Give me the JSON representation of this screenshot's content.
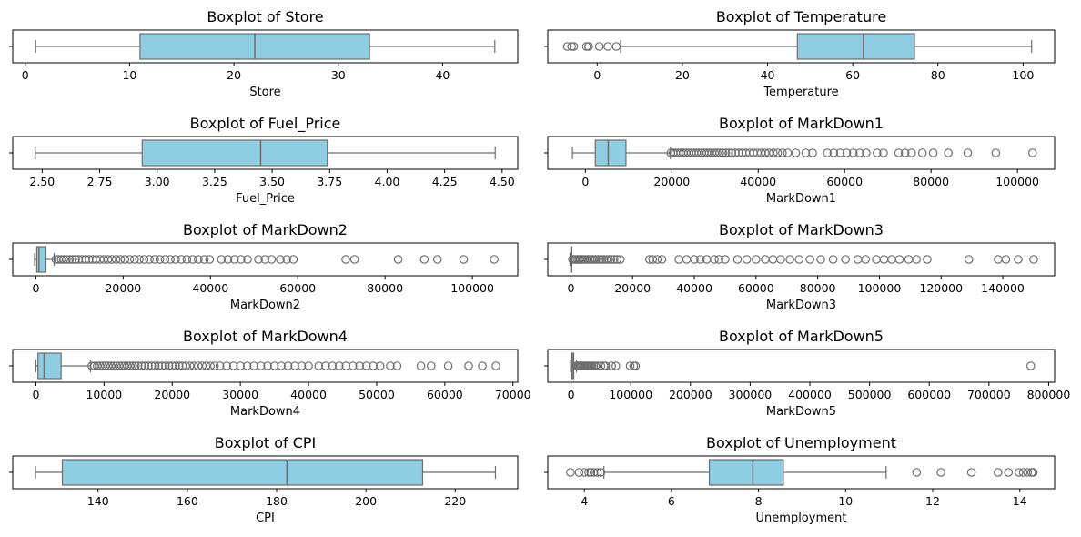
{
  "chart_data": [
    {
      "type": "boxplot",
      "title": "Boxplot of Store",
      "xlabel": "Store",
      "xlim": [
        -1.2,
        47.2
      ],
      "ticks": [
        0,
        10,
        20,
        30,
        40
      ],
      "tick_labels": [
        "0",
        "10",
        "20",
        "30",
        "40"
      ],
      "box": {
        "whisker_low": 1,
        "q1": 11,
        "median": 22,
        "q3": 33,
        "whisker_high": 45
      },
      "outliers": []
    },
    {
      "type": "boxplot",
      "title": "Boxplot of Temperature",
      "xlabel": "Temperature",
      "xlim": [
        -11.6,
        107.4
      ],
      "ticks": [
        0,
        20,
        40,
        60,
        80,
        100
      ],
      "tick_labels": [
        "0",
        "20",
        "40",
        "60",
        "80",
        "100"
      ],
      "box": {
        "whisker_low": 5.5,
        "q1": 47,
        "median": 62.5,
        "q3": 74.5,
        "whisker_high": 102
      },
      "outliers": [
        -7,
        -6,
        -5.5,
        -2.5,
        -2,
        0.5,
        2.5,
        4.5
      ]
    },
    {
      "type": "boxplot",
      "title": "Boxplot of Fuel_Price",
      "xlabel": "Fuel_Price",
      "xlim": [
        2.372,
        4.568
      ],
      "ticks": [
        2.5,
        2.75,
        3.0,
        3.25,
        3.5,
        3.75,
        4.0,
        4.25,
        4.5
      ],
      "tick_labels": [
        "2.50",
        "2.75",
        "3.00",
        "3.25",
        "3.50",
        "3.75",
        "4.00",
        "4.25",
        "4.50"
      ],
      "box": {
        "whisker_low": 2.47,
        "q1": 2.935,
        "median": 3.45,
        "q3": 3.74,
        "whisker_high": 4.47
      },
      "outliers": []
    },
    {
      "type": "boxplot",
      "title": "Boxplot of MarkDown1",
      "xlabel": "MarkDown1",
      "xlim": [
        -8700,
        108600
      ],
      "ticks": [
        0,
        20000,
        40000,
        60000,
        80000,
        100000
      ],
      "tick_labels": [
        "0",
        "20000",
        "40000",
        "60000",
        "80000",
        "100000"
      ],
      "box": {
        "whisker_low": -3000,
        "q1": 2300,
        "median": 5300,
        "q3": 9400,
        "whisker_high": 19700
      },
      "outliers": [
        19800,
        20300,
        20900,
        21500,
        22100,
        22700,
        23300,
        23900,
        24500,
        25100,
        25700,
        26300,
        26900,
        27500,
        28100,
        28700,
        29300,
        29900,
        30500,
        31100,
        31800,
        32500,
        33200,
        33900,
        34700,
        35500,
        36300,
        37100,
        38000,
        38900,
        39800,
        40700,
        41600,
        42500,
        43500,
        44500,
        45600,
        46800,
        48700,
        51000,
        52600,
        56000,
        57500,
        59000,
        60500,
        62000,
        63500,
        65000,
        67500,
        69000,
        72500,
        74000,
        75500,
        78000,
        80500,
        84000,
        88500,
        95000,
        103500
      ]
    },
    {
      "type": "boxplot",
      "title": "Boxplot of MarkDown2",
      "xlabel": "MarkDown2",
      "xlim": [
        -5300,
        110400
      ],
      "ticks": [
        0,
        20000,
        40000,
        60000,
        80000,
        100000
      ],
      "tick_labels": [
        "0",
        "20000",
        "40000",
        "60000",
        "80000",
        "100000"
      ],
      "box": {
        "whisker_low": -300,
        "q1": 200,
        "median": 700,
        "q3": 2300,
        "whisker_high": 4200
      },
      "outliers": [
        4600,
        5200,
        5800,
        6400,
        7000,
        7700,
        8400,
        9100,
        9800,
        10600,
        11400,
        12200,
        13000,
        13800,
        14700,
        15600,
        16500,
        17400,
        18400,
        19400,
        20400,
        21500,
        22600,
        23700,
        24800,
        26000,
        27200,
        28400,
        29600,
        30800,
        32000,
        33300,
        34600,
        35900,
        37200,
        38600,
        39800,
        42500,
        44000,
        45500,
        47000,
        48500,
        51000,
        52500,
        54000,
        56000,
        57500,
        59000,
        71000,
        73000,
        83000,
        89000,
        92000,
        98000,
        105000
      ]
    },
    {
      "type": "boxplot",
      "title": "Boxplot of MarkDown3",
      "xlabel": "MarkDown3",
      "xlim": [
        -7500,
        156800
      ],
      "ticks": [
        0,
        20000,
        40000,
        60000,
        80000,
        100000,
        120000,
        140000
      ],
      "tick_labels": [
        "0",
        "20000",
        "40000",
        "60000",
        "80000",
        "100000",
        "120000",
        "140000"
      ],
      "box": {
        "whisker_low": -300,
        "q1": 0,
        "median": 30,
        "q3": 100,
        "whisker_high": 300
      },
      "outliers": [
        500,
        1000,
        1500,
        2000,
        2500,
        3000,
        3500,
        4000,
        4500,
        5000,
        5600,
        6200,
        6800,
        7400,
        8000,
        8700,
        9400,
        10100,
        10800,
        11500,
        12200,
        13000,
        14000,
        15000,
        16000,
        25500,
        26500,
        28000,
        29500,
        35000,
        37500,
        40000,
        42000,
        44000,
        46500,
        48000,
        50000,
        54000,
        57000,
        60000,
        63000,
        65500,
        68000,
        71000,
        74000,
        77500,
        81000,
        85000,
        89000,
        93000,
        95500,
        99000,
        101500,
        104000,
        106500,
        109500,
        112000,
        115500,
        129000,
        138500,
        141000,
        145000,
        150000
      ]
    },
    {
      "type": "boxplot",
      "title": "Boxplot of MarkDown4",
      "xlabel": "MarkDown4",
      "xlim": [
        -3400,
        70700
      ],
      "ticks": [
        0,
        10000,
        20000,
        30000,
        40000,
        50000,
        60000,
        70000
      ],
      "tick_labels": [
        "0",
        "10000",
        "20000",
        "30000",
        "40000",
        "50000",
        "60000",
        "70000"
      ],
      "box": {
        "whisker_low": 0,
        "q1": 300,
        "median": 1200,
        "q3": 3700,
        "whisker_high": 8000
      },
      "outliers": [
        8200,
        8600,
        9000,
        9400,
        9800,
        10200,
        10600,
        11000,
        11400,
        11800,
        12200,
        12600,
        13000,
        13400,
        13800,
        14200,
        14600,
        15000,
        15500,
        16000,
        16500,
        17000,
        17500,
        18000,
        18500,
        19000,
        19500,
        20000,
        20500,
        21000,
        21500,
        22000,
        22600,
        23200,
        23800,
        24400,
        25000,
        25600,
        26200,
        27000,
        28000,
        29000,
        30000,
        31000,
        32000,
        33000,
        34000,
        35000,
        36000,
        37000,
        38000,
        39000,
        40000,
        41500,
        42500,
        43500,
        44500,
        45500,
        46500,
        47500,
        48500,
        49500,
        50500,
        52000,
        53000,
        56500,
        58000,
        60500,
        63500,
        65500,
        67500
      ]
    },
    {
      "type": "boxplot",
      "title": "Boxplot of MarkDown5",
      "xlabel": "MarkDown5",
      "xlim": [
        -39000,
        810000
      ],
      "ticks": [
        0,
        100000,
        200000,
        300000,
        400000,
        500000,
        600000,
        700000,
        800000
      ],
      "tick_labels": [
        "0",
        "100000",
        "200000",
        "300000",
        "400000",
        "500000",
        "600000",
        "700000",
        "800000"
      ],
      "box": {
        "whisker_low": -800,
        "q1": 800,
        "median": 2300,
        "q3": 4500,
        "whisker_high": 9000
      },
      "outliers": [
        9500,
        11000,
        12500,
        14000,
        15500,
        17000,
        19000,
        21000,
        23000,
        25000,
        27000,
        29000,
        31000,
        33000,
        35000,
        38000,
        41000,
        45000,
        50000,
        55000,
        58000,
        68000,
        75000,
        99000,
        105000,
        108000,
        770000
      ]
    },
    {
      "type": "boxplot",
      "title": "Boxplot of CPI",
      "xlabel": "CPI",
      "xlim": [
        120.9,
        234.0
      ],
      "ticks": [
        140,
        160,
        180,
        200,
        220
      ],
      "tick_labels": [
        "140",
        "160",
        "180",
        "200",
        "220"
      ],
      "box": {
        "whisker_low": 126,
        "q1": 132,
        "median": 182.3,
        "q3": 212.7,
        "whisker_high": 229
      },
      "outliers": []
    },
    {
      "type": "boxplot",
      "title": "Boxplot of Unemployment",
      "xlabel": "Unemployment",
      "xlim": [
        3.16,
        14.8
      ],
      "ticks": [
        4,
        6,
        8,
        10,
        12,
        14
      ],
      "tick_labels": [
        "4",
        "6",
        "8",
        "10",
        "12",
        "14"
      ],
      "box": {
        "whisker_low": 4.45,
        "q1": 6.87,
        "median": 7.87,
        "q3": 8.57,
        "whisker_high": 10.93
      },
      "outliers": [
        3.68,
        3.88,
        4.0,
        4.1,
        4.15,
        4.22,
        4.3,
        4.38,
        11.63,
        12.19,
        12.89,
        13.5,
        13.74,
        13.98,
        14.08,
        14.18,
        14.27,
        14.31
      ]
    }
  ],
  "colors": {
    "box_fill": "#8fcde3",
    "line": "#6e6e6e",
    "axes": "#000000"
  }
}
